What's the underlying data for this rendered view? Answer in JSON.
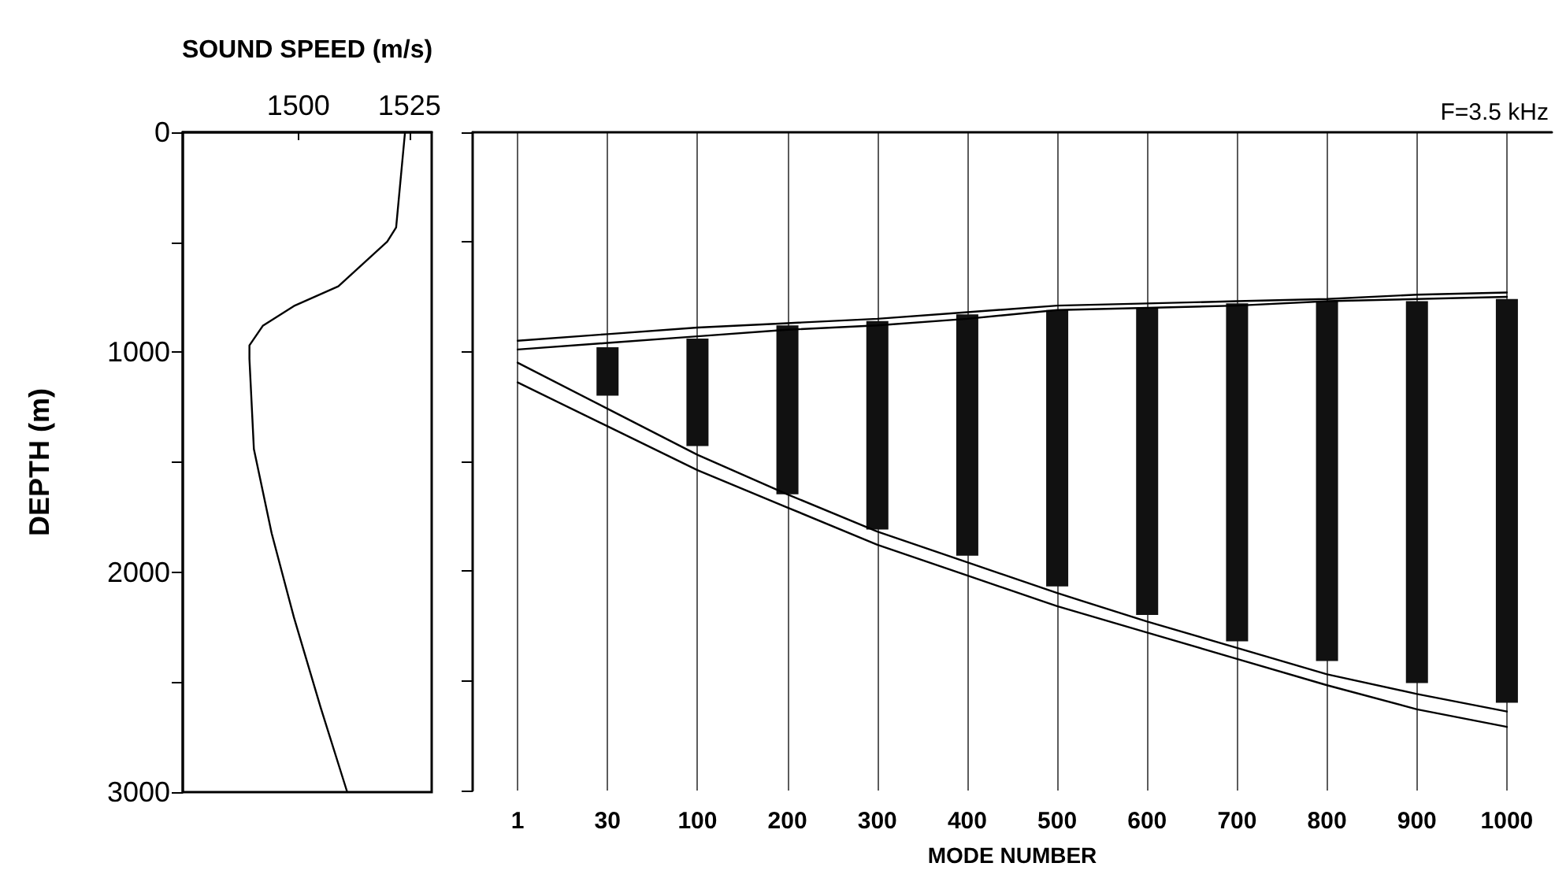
{
  "chart_data": [
    {
      "type": "line",
      "xlabel": "SOUND SPEED (m/s)",
      "ylabel": "DEPTH (m)",
      "xlim": [
        1474,
        1530
      ],
      "xticks": [
        1500,
        1525
      ],
      "ylim": [
        3000,
        0
      ],
      "yticks": [
        0,
        {
          "value": 500,
          "label": null
        },
        1000,
        {
          "value": 1500,
          "label": null
        },
        2000,
        {
          "value": 2500,
          "label": null
        },
        3000
      ],
      "series": [
        {
          "color": "#000000",
          "x": [
            1524,
            1522,
            1520,
            1509,
            1499,
            1492,
            1489,
            1489,
            1490,
            1494,
            1499,
            1505,
            1511
          ],
          "values": [
            0,
            433,
            497,
            700,
            790,
            880,
            969,
            1030,
            1440,
            1823,
            2205,
            2614,
            3000
          ]
        }
      ]
    },
    {
      "type": "bar",
      "xlabel": "MODE NUMBER",
      "annotations": [
        "F=3.5 kHz"
      ],
      "categories": [
        "1",
        "30",
        "100",
        "200",
        "300",
        "400",
        "500",
        "600",
        "700",
        "800",
        "900",
        "1000"
      ],
      "ylim": [
        3000,
        0
      ],
      "yticks": [
        0,
        500,
        1000,
        1500,
        2000,
        2500,
        3000
      ],
      "tick_labels": "x",
      "grid": "x",
      "series": [
        {
          "color": "#111111",
          "base": [
            null,
            980,
            940,
            880,
            860,
            830,
            810,
            800,
            780,
            770,
            770,
            760
          ],
          "values": [
            null,
            220,
            490,
            770,
            950,
            1100,
            1260,
            1400,
            1540,
            1640,
            1740,
            1840
          ]
        },
        {
          "type": "line",
          "color": "#000000",
          "values": [
            950,
            920,
            890,
            870,
            850,
            820,
            790,
            780,
            770,
            760,
            740,
            730
          ]
        },
        {
          "type": "line",
          "color": "#000000",
          "values": [
            990,
            960,
            930,
            900,
            880,
            850,
            810,
            800,
            790,
            770,
            760,
            750
          ]
        },
        {
          "type": "line",
          "color": "#000000",
          "values": [
            1050,
            1260,
            1470,
            1650,
            1820,
            1960,
            2100,
            2230,
            2350,
            2470,
            2560,
            2640
          ]
        },
        {
          "type": "line",
          "color": "#000000",
          "values": [
            1140,
            1340,
            1540,
            1710,
            1880,
            2020,
            2160,
            2280,
            2400,
            2520,
            2630,
            2710
          ]
        }
      ]
    }
  ]
}
